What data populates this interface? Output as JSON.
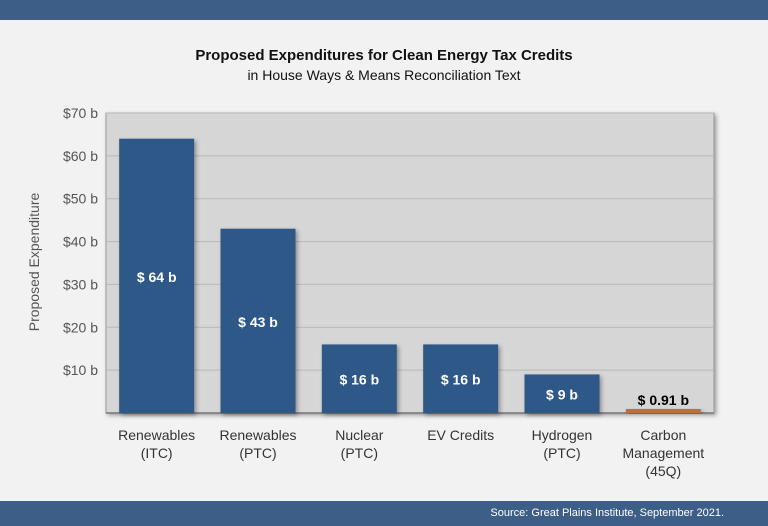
{
  "page": {
    "source": "Source: Great Plains Institute, September 2021."
  },
  "colors": {
    "band": "#3d5f87",
    "bar": "#2f5888",
    "highlight_bar": "#c26d33",
    "plot_bg": "#d6d6d6",
    "grid": "#b8b8b8"
  },
  "chart_data": {
    "type": "bar",
    "title": "Proposed Expenditures for Clean Energy Tax Credits",
    "subtitle": "in House Ways & Means Reconciliation Text",
    "xlabel": "",
    "ylabel": "Proposed Expenditure",
    "ylim": [
      0,
      70
    ],
    "yticks": [
      {
        "value": 10,
        "label": "$10 b"
      },
      {
        "value": 20,
        "label": "$20 b"
      },
      {
        "value": 30,
        "label": "$30 b"
      },
      {
        "value": 40,
        "label": "$40 b"
      },
      {
        "value": 50,
        "label": "$50 b"
      },
      {
        "value": 60,
        "label": "$60 b"
      },
      {
        "value": 70,
        "label": "$70 b"
      }
    ],
    "grid": true,
    "categories": [
      [
        "Renewables",
        "(ITC)"
      ],
      [
        "Renewables",
        "(PTC)"
      ],
      [
        "Nuclear",
        "(PTC)"
      ],
      [
        "EV Credits"
      ],
      [
        "Hydrogen",
        "(PTC)"
      ],
      [
        "Carbon",
        "Management",
        "(45Q)"
      ]
    ],
    "values": [
      64,
      43,
      16,
      16,
      9,
      0.91
    ],
    "data_labels": [
      "$ 64 b",
      "$ 43 b",
      "$ 16 b",
      "$ 16 b",
      "$ 9 b",
      "$ 0.91 b"
    ]
  }
}
